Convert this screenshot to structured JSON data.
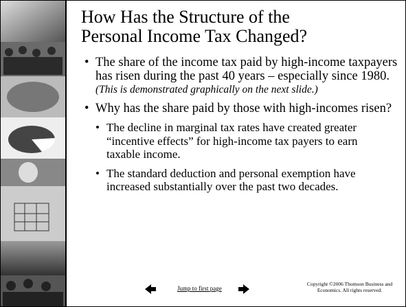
{
  "title": "How Has the Structure of the Personal Income Tax Changed?",
  "bullets": [
    {
      "text": "The share of the income tax paid by high-income taxpayers has risen during the past 40 years – especially since 1980.",
      "note": "(This is demonstrated graphically on the next slide.)"
    },
    {
      "text": "Why has the share paid by those with high-incomes risen?",
      "sub": [
        "The decline in marginal tax rates have created greater “incentive effects” for high-income tax payers to earn taxable income.",
        "The standard deduction and personal exemption have increased substantially over the past two decades."
      ]
    }
  ],
  "footer": {
    "link": "Jump to first page",
    "copyright": "Copyright ©2006  Thomson Business and Economics. All rights reserved."
  }
}
